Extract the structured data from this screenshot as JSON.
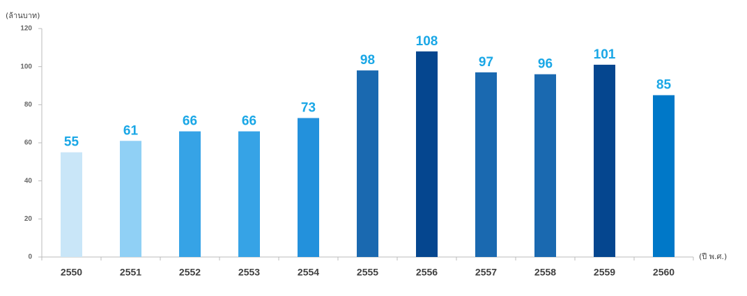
{
  "chart_data": {
    "type": "bar",
    "y_label": "(ล้านบาท)",
    "x_label": "(ปี พ.ศ.)",
    "categories": [
      "2550",
      "2551",
      "2552",
      "2553",
      "2554",
      "2555",
      "2556",
      "2557",
      "2558",
      "2559",
      "2560"
    ],
    "values": [
      55,
      61,
      66,
      66,
      73,
      98,
      108,
      97,
      96,
      101,
      85
    ],
    "colors": [
      "#c9e6f8",
      "#90d0f5",
      "#36a3e6",
      "#36a3e6",
      "#2391dc",
      "#1a69b0",
      "#05468f",
      "#1a69b0",
      "#1a69b0",
      "#05468f",
      "#0078c8"
    ],
    "label_color": "#1aa7e6",
    "ylim": [
      0,
      120
    ],
    "yticks": [
      0,
      20,
      40,
      60,
      80,
      100,
      120
    ],
    "grid": false
  }
}
